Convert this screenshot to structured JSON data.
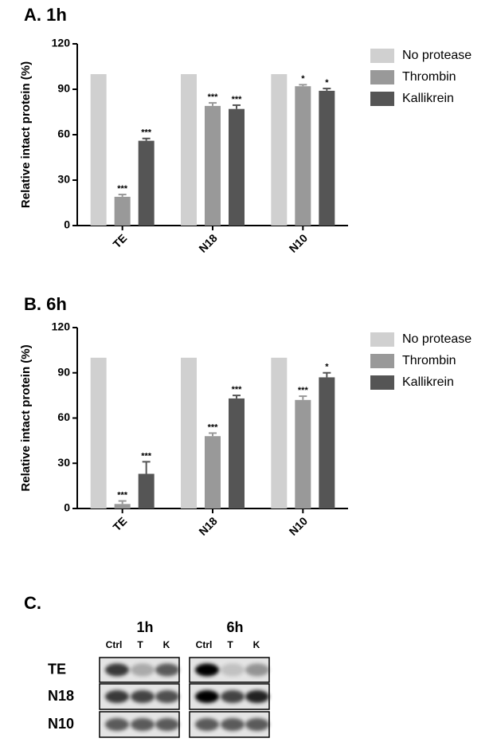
{
  "chart_data": [
    {
      "type": "bar",
      "title": "A. 1h",
      "y_label": "Relative intact protein (%)",
      "categories": [
        "TE",
        "N18",
        "N10"
      ],
      "series": [
        {
          "name": "No protease",
          "color": "#d0d0d0",
          "values": [
            100,
            100,
            100
          ]
        },
        {
          "name": "Thrombin",
          "color": "#999999",
          "values": [
            19,
            79,
            92
          ],
          "errors": [
            1.5,
            2,
            1
          ],
          "labels": [
            "***",
            "***",
            "*"
          ]
        },
        {
          "name": "Kallikrein",
          "color": "#555555",
          "values": [
            56,
            77,
            89
          ],
          "errors": [
            1.5,
            2.5,
            1.5
          ],
          "labels": [
            "***",
            "***",
            "*"
          ]
        }
      ],
      "ylim": [
        0,
        120
      ],
      "yticks": [
        0,
        30,
        60,
        90,
        120
      ]
    },
    {
      "type": "bar",
      "title": "B. 6h",
      "y_label": "Relative intact protein (%)",
      "categories": [
        "TE",
        "N18",
        "N10"
      ],
      "series": [
        {
          "name": "No protease",
          "color": "#d0d0d0",
          "values": [
            100,
            100,
            100
          ]
        },
        {
          "name": "Thrombin",
          "color": "#999999",
          "values": [
            3,
            48,
            72
          ],
          "errors": [
            2,
            2,
            2.5
          ],
          "labels": [
            "***",
            "***",
            "***"
          ]
        },
        {
          "name": "Kallikrein",
          "color": "#555555",
          "values": [
            23,
            73,
            87
          ],
          "errors": [
            8,
            2,
            3
          ],
          "labels": [
            "***",
            "***",
            "*"
          ]
        }
      ],
      "ylim": [
        0,
        120
      ],
      "yticks": [
        0,
        30,
        60,
        90,
        120
      ]
    }
  ],
  "panel_c": {
    "title": "C.",
    "time_points": [
      "1h",
      "6h"
    ],
    "lanes": [
      "Ctrl",
      "T",
      "K"
    ],
    "rows": [
      "TE",
      "N18",
      "N10"
    ]
  }
}
